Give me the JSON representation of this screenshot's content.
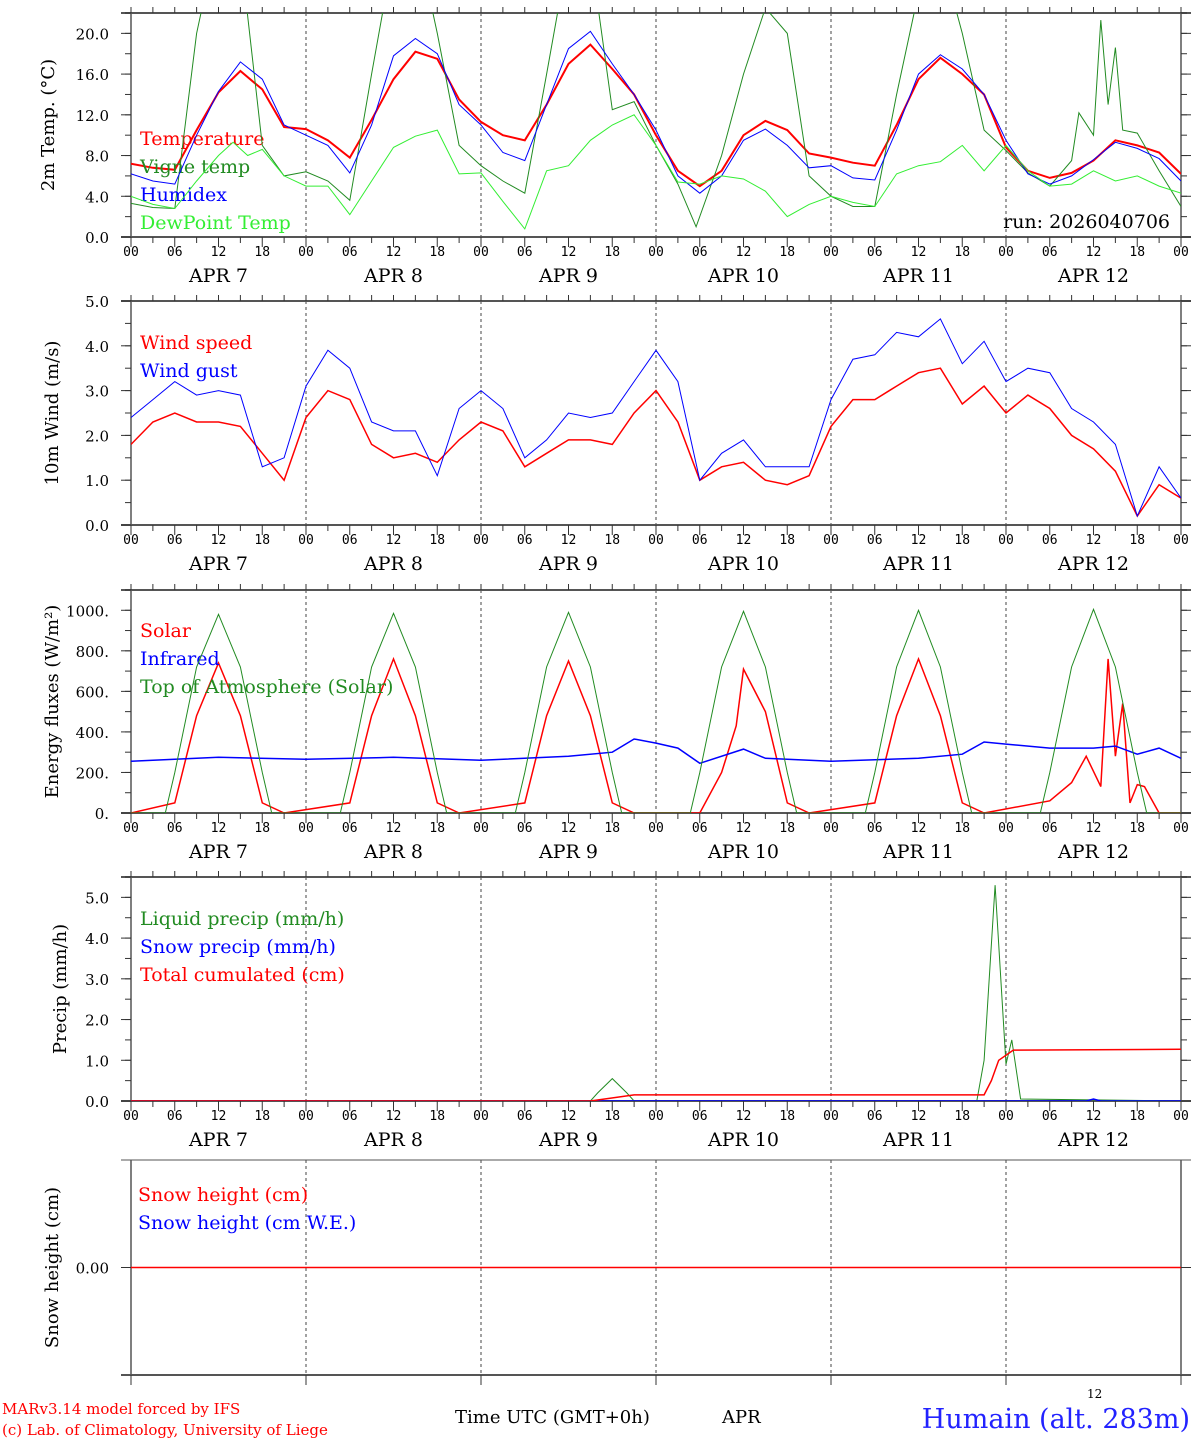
{
  "chart_data": [
    {
      "type": "line",
      "ylabel": "2m Temp. (°C)",
      "ylim": [
        0,
        22
      ],
      "yticks": [
        0,
        4,
        8,
        12,
        16,
        20
      ],
      "ytick_labels": [
        "0.0",
        "4.0",
        "8.0",
        "12.0",
        "16.0",
        "20.0"
      ],
      "yminor": 2,
      "annotation": "run: 2026040706",
      "series": [
        {
          "name": "Temperature",
          "color": "#ff0000",
          "width": 2,
          "y": [
            7.2,
            6.8,
            6.6,
            10.5,
            14.2,
            16.3,
            14.5,
            10.8,
            10.6,
            9.5,
            7.8,
            11.5,
            15.5,
            18.2,
            17.5,
            13.5,
            11.3,
            10,
            9.5,
            13,
            17,
            18.9,
            16.5,
            14,
            10,
            6.5,
            5,
            6.5,
            10,
            11.4,
            10.5,
            8.2,
            7.8,
            7.3,
            7,
            11,
            15.5,
            17.6,
            16,
            14,
            8.8,
            6.5,
            5.8,
            6.3,
            7.5,
            9.5,
            9,
            8.3,
            6.2
          ]
        },
        {
          "name": "Vigne temp",
          "color": "#228b22",
          "width": 1,
          "x": [
            0,
            3,
            6,
            9,
            12,
            15,
            18,
            21,
            24,
            27,
            30,
            33,
            36,
            39,
            42,
            45,
            48,
            51,
            54,
            57,
            60,
            63,
            66,
            69,
            72,
            75,
            77.5,
            81,
            84,
            87,
            90,
            93,
            96,
            99,
            102,
            105,
            108,
            111,
            114,
            117,
            120,
            123,
            126,
            129,
            130,
            132,
            133,
            134,
            135,
            136,
            138,
            141,
            144
          ],
          "y": [
            3.3,
            2.9,
            2.8,
            20,
            30,
            28,
            9,
            6,
            6.4,
            5.5,
            3.6,
            16,
            28,
            30,
            20,
            9,
            7,
            5.5,
            4.3,
            16,
            28,
            28,
            12.5,
            13.3,
            9,
            5.2,
            1,
            8,
            16,
            22.5,
            20,
            6,
            4,
            3,
            3,
            14,
            24,
            28,
            20,
            10.5,
            8.5,
            6.3,
            5,
            7.5,
            12.2,
            10,
            21.3,
            13,
            18.6,
            10.5,
            10.2,
            6.5,
            3
          ]
        },
        {
          "name": "Humidex",
          "color": "#0000ff",
          "width": 1,
          "y": [
            6.2,
            5.5,
            5.2,
            10,
            14.3,
            17.2,
            15.5,
            11,
            10,
            9,
            6.3,
            11,
            17.8,
            19.5,
            18,
            13,
            11,
            8.3,
            7.5,
            13,
            18.5,
            20.2,
            17,
            14,
            10.5,
            6,
            4.3,
            6,
            9.5,
            10.6,
            9,
            6.8,
            7,
            5.8,
            5.6,
            10.5,
            16,
            17.9,
            16.5,
            14,
            9.5,
            6.2,
            5.2,
            6,
            7.6,
            9.3,
            8.7,
            7.7,
            5.5
          ]
        },
        {
          "name": "DewPoint Temp",
          "color": "#33ee33",
          "width": 1,
          "x": [
            0,
            3,
            6,
            9,
            12,
            14,
            16,
            18,
            21,
            24,
            27,
            30,
            33,
            36,
            39,
            42,
            45,
            48,
            51,
            54,
            57,
            60,
            63,
            66,
            69,
            72,
            75,
            78,
            81,
            84,
            87,
            90,
            93,
            96,
            99,
            102,
            105,
            108,
            111,
            114,
            117,
            120,
            123,
            126,
            129,
            132,
            135,
            138,
            141,
            144
          ],
          "y": [
            4,
            3.2,
            2.8,
            5.5,
            8,
            9.3,
            8,
            8.6,
            6,
            5,
            5,
            2.2,
            5.5,
            8.8,
            9.9,
            10.5,
            6.2,
            6.3,
            3.5,
            0.8,
            6.5,
            7,
            9.5,
            11,
            12,
            9,
            5.4,
            5.2,
            6,
            5.7,
            4.5,
            2,
            3.2,
            4,
            3.4,
            3,
            6.2,
            7,
            7.4,
            9,
            6.5,
            9,
            6.5,
            5,
            5.2,
            6.5,
            5.5,
            6,
            5,
            4.3
          ]
        }
      ]
    },
    {
      "type": "line",
      "ylabel": "10m Wind (m/s)",
      "ylim": [
        0,
        5
      ],
      "yticks": [
        0,
        1,
        2,
        3,
        4,
        5
      ],
      "ytick_labels": [
        "0.0",
        "1.0",
        "2.0",
        "3.0",
        "4.0",
        "5.0"
      ],
      "yminor": 0.5,
      "series": [
        {
          "name": "Wind speed",
          "color": "#ff0000",
          "width": 1.5,
          "y": [
            1.8,
            2.3,
            2.5,
            2.3,
            2.3,
            2.2,
            1.6,
            1.0,
            2.4,
            3.0,
            2.8,
            1.8,
            1.5,
            1.6,
            1.4,
            1.9,
            2.3,
            2.1,
            1.3,
            1.6,
            1.9,
            1.9,
            1.8,
            2.5,
            3.0,
            2.3,
            1.0,
            1.3,
            1.4,
            1.0,
            0.9,
            1.1,
            2.2,
            2.8,
            2.8,
            3.1,
            3.4,
            3.5,
            2.7,
            3.1,
            2.5,
            2.9,
            2.6,
            2.0,
            1.7,
            1.2,
            0.2,
            0.9,
            0.6
          ]
        },
        {
          "name": "Wind gust",
          "color": "#0000ff",
          "width": 1,
          "y": [
            2.4,
            2.8,
            3.2,
            2.9,
            3.0,
            2.9,
            1.3,
            1.5,
            3.1,
            3.9,
            3.5,
            2.3,
            2.1,
            2.1,
            1.1,
            2.6,
            3.0,
            2.6,
            1.5,
            1.9,
            2.5,
            2.4,
            2.5,
            3.2,
            3.9,
            3.2,
            1.0,
            1.6,
            1.9,
            1.3,
            1.3,
            1.3,
            2.8,
            3.7,
            3.8,
            4.3,
            4.2,
            4.6,
            3.6,
            4.1,
            3.2,
            3.5,
            3.4,
            2.6,
            2.3,
            1.8,
            0.2,
            1.3,
            0.6
          ]
        }
      ]
    },
    {
      "type": "line",
      "ylabel": "Energy fluxes (W/m²)",
      "ylim": [
        0,
        1100
      ],
      "yticks": [
        0,
        200,
        400,
        600,
        800,
        1000
      ],
      "ytick_labels": [
        "0.",
        "200.",
        "400.",
        "600.",
        "800.",
        "1000."
      ],
      "yminor": 100,
      "series": [
        {
          "name": "Solar",
          "color": "#ff0000",
          "width": 1.5,
          "x": [
            0,
            6,
            9,
            12,
            15,
            18,
            21,
            30,
            33,
            36,
            39,
            42,
            45,
            54,
            57,
            60,
            63,
            66,
            69,
            78,
            81,
            83,
            84,
            87,
            90,
            93,
            102,
            105,
            108,
            111,
            114,
            117,
            126,
            129,
            131,
            133,
            134,
            135,
            136,
            137,
            138,
            139,
            141,
            144
          ],
          "y": [
            0,
            50,
            480,
            740,
            480,
            50,
            0,
            50,
            480,
            760,
            480,
            50,
            0,
            50,
            480,
            750,
            480,
            50,
            0,
            0,
            200,
            430,
            710,
            500,
            50,
            0,
            50,
            480,
            760,
            480,
            50,
            0,
            60,
            150,
            280,
            130,
            760,
            280,
            540,
            50,
            140,
            130,
            0,
            0
          ]
        },
        {
          "name": "Infrared",
          "color": "#0000ff",
          "width": 1.5,
          "x": [
            0,
            12,
            24,
            36,
            48,
            60,
            66,
            69,
            72,
            75,
            78,
            84,
            87,
            96,
            108,
            114,
            117,
            120,
            126,
            132,
            135,
            138,
            141,
            144
          ],
          "y": [
            255,
            275,
            265,
            275,
            260,
            280,
            300,
            365,
            345,
            320,
            245,
            315,
            270,
            255,
            270,
            290,
            350,
            340,
            320,
            320,
            330,
            290,
            320,
            270
          ]
        },
        {
          "name": "Top of Atmosphere (Solar)",
          "color": "#228b22",
          "width": 1,
          "x": [
            0,
            4.7,
            6,
            9,
            12,
            15,
            18,
            19.3,
            24,
            28.7,
            30,
            33,
            36,
            39,
            42,
            43.3,
            48,
            52.7,
            54,
            57,
            60,
            63,
            66,
            67.3,
            72,
            76.7,
            78,
            81,
            84,
            87,
            90,
            91.3,
            96,
            100.7,
            102,
            105,
            108,
            111,
            114,
            115.3,
            120,
            124.7,
            126,
            129,
            132,
            135,
            138,
            139.3,
            144
          ],
          "y": [
            0,
            0,
            200,
            720,
            980,
            720,
            200,
            0,
            0,
            0,
            200,
            720,
            985,
            720,
            200,
            0,
            0,
            0,
            200,
            720,
            990,
            720,
            200,
            0,
            0,
            0,
            200,
            720,
            995,
            720,
            200,
            0,
            0,
            0,
            200,
            720,
            1000,
            720,
            200,
            0,
            0,
            0,
            200,
            720,
            1005,
            720,
            200,
            0,
            0
          ]
        }
      ]
    },
    {
      "type": "line",
      "ylabel": "Precip (mm/h)",
      "ylim": [
        0,
        5.5
      ],
      "yticks": [
        0,
        1,
        2,
        3,
        4,
        5
      ],
      "ytick_labels": [
        "0.0",
        "1.0",
        "2.0",
        "3.0",
        "4.0",
        "5.0"
      ],
      "yminor": 0.5,
      "series": [
        {
          "name": "Liquid precip (mm/h)",
          "color": "#228b22",
          "width": 1,
          "x": [
            0,
            63,
            64,
            66,
            68,
            69,
            116,
            117,
            118.5,
            120,
            120.8,
            122,
            144
          ],
          "y": [
            0,
            0,
            0.2,
            0.55,
            0.2,
            0,
            0,
            1,
            5.3,
            0.9,
            1.5,
            0.05,
            0
          ]
        },
        {
          "name": "Snow precip (mm/h)",
          "color": "#0000ff",
          "width": 1.5,
          "x": [
            0,
            131,
            132,
            133,
            144
          ],
          "y": [
            0,
            0,
            0.05,
            0,
            0
          ]
        },
        {
          "name": "Total cumulated (cm)",
          "color": "#ff0000",
          "width": 1.5,
          "x": [
            0,
            63,
            69,
            117,
            118,
            119,
            121,
            144
          ],
          "y": [
            0,
            0,
            0.15,
            0.15,
            0.5,
            1.0,
            1.25,
            1.27
          ]
        }
      ]
    },
    {
      "type": "line",
      "ylabel": "Snow height (cm)",
      "ylim": [
        -1,
        1
      ],
      "yticks": [
        0
      ],
      "ytick_labels": [
        "0.00"
      ],
      "series": [
        {
          "name": "Snow height (cm)",
          "color": "#ff0000",
          "width": 1.5,
          "x": [
            0,
            144
          ],
          "y": [
            0,
            0
          ]
        },
        {
          "name": "Snow height (cm W.E.)",
          "color": "#0000ff",
          "width": 1.5,
          "x": [
            0,
            144
          ],
          "y": [
            0,
            0
          ],
          "hidden": true
        }
      ]
    }
  ],
  "x_axis": {
    "range_hours": [
      0,
      144
    ],
    "hour_labels": [
      "00",
      "06",
      "12",
      "18"
    ],
    "end_label": "00",
    "days": [
      "APR  7",
      "APR  8",
      "APR  9",
      "APR 10",
      "APR 11",
      "APR 12"
    ]
  },
  "footer": {
    "credit_line1": "MARv3.14 model forced by IFS",
    "credit_line2": "(c) Lab. of Climatology, University of Liege",
    "xlabel": "Time UTC (GMT+0h)",
    "month": "APR",
    "day_marker": "12",
    "station": "Humain (alt. 283m)"
  }
}
